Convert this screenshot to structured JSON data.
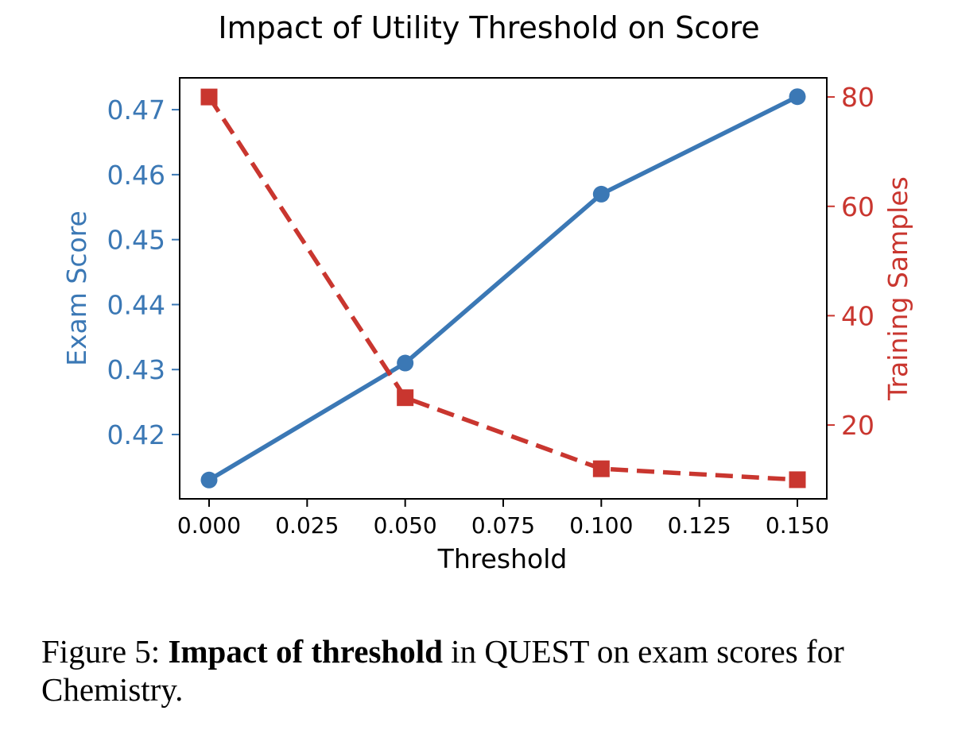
{
  "chart_data": {
    "type": "line",
    "title": "Impact of Utility Threshold on Score",
    "xlabel": "Threshold",
    "x": [
      0.0,
      0.05,
      0.1,
      0.15
    ],
    "xticks": [
      "0.000",
      "0.025",
      "0.050",
      "0.075",
      "0.100",
      "0.125",
      "0.150"
    ],
    "xtick_values": [
      0.0,
      0.025,
      0.05,
      0.075,
      0.1,
      0.125,
      0.15
    ],
    "xlim": [
      -0.0075,
      0.1575
    ],
    "left_axis": {
      "label": "Exam Score",
      "color": "#3b78b5",
      "ylim": [
        0.4101,
        0.4749
      ],
      "ticks": [
        "0.42",
        "0.43",
        "0.44",
        "0.45",
        "0.46",
        "0.47"
      ],
      "tick_values": [
        0.42,
        0.43,
        0.44,
        0.45,
        0.46,
        0.47
      ]
    },
    "right_axis": {
      "label": "Training Samples",
      "color": "#c9362f",
      "ylim": [
        6.5,
        83.5
      ],
      "ticks": [
        "20",
        "40",
        "60",
        "80"
      ],
      "tick_values": [
        20,
        40,
        60,
        80
      ]
    },
    "series": [
      {
        "name": "Exam Score",
        "axis": "left",
        "style": "solid",
        "marker": "circle",
        "color": "#3b78b5",
        "values": [
          0.413,
          0.431,
          0.457,
          0.472
        ]
      },
      {
        "name": "Training Samples",
        "axis": "right",
        "style": "dashed",
        "marker": "square",
        "color": "#c9362f",
        "values": [
          80,
          25,
          12,
          10
        ]
      }
    ],
    "grid": false
  },
  "caption": {
    "prefix": "Figure 5: ",
    "bold": "Impact of threshold",
    "rest": " in QUEST on exam scores for Chemistry."
  }
}
